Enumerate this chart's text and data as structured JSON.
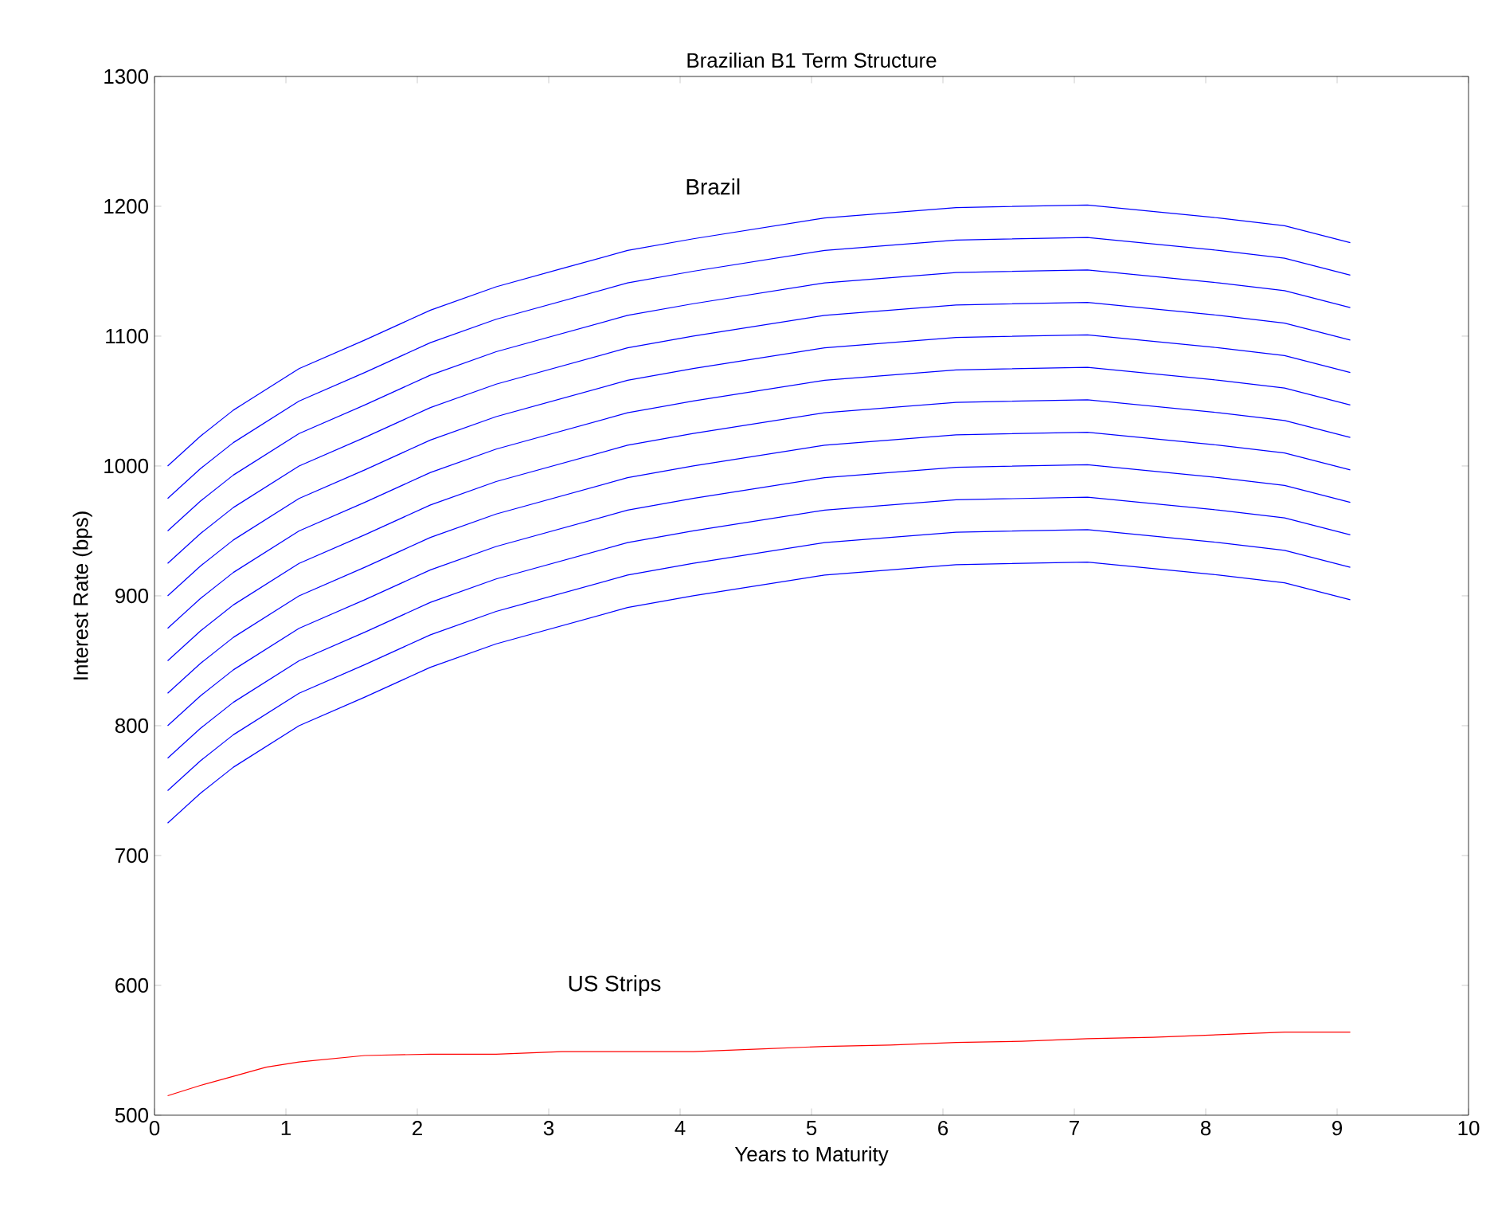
{
  "chart_data": {
    "type": "line",
    "title": "Brazilian B1 Term Structure",
    "xlabel": "Years to Maturity",
    "ylabel": "Interest Rate (bps)",
    "x": [
      0.1,
      0.35,
      0.6,
      1.1,
      1.6,
      2.1,
      2.6,
      3.1,
      3.6,
      4.1,
      5.1,
      6.1,
      7.1,
      8.1,
      8.6,
      9.1
    ],
    "series": [
      {
        "color": "#0000ff",
        "values": [
          725,
          748,
          768,
          800,
          822,
          845,
          863,
          877,
          891,
          900,
          916,
          924,
          926,
          916,
          910,
          897
        ]
      },
      {
        "color": "#0000ff",
        "values": [
          750,
          773,
          793,
          825,
          847,
          870,
          888,
          902,
          916,
          925,
          941,
          949,
          951,
          941,
          935,
          922
        ]
      },
      {
        "color": "#0000ff",
        "values": [
          775,
          798,
          818,
          850,
          872,
          895,
          913,
          927,
          941,
          950,
          966,
          974,
          976,
          966,
          960,
          947
        ]
      },
      {
        "color": "#0000ff",
        "values": [
          800,
          823,
          843,
          875,
          897,
          920,
          938,
          952,
          966,
          975,
          991,
          999,
          1001,
          991,
          985,
          972
        ]
      },
      {
        "color": "#0000ff",
        "values": [
          825,
          848,
          868,
          900,
          922,
          945,
          963,
          977,
          991,
          1000,
          1016,
          1024,
          1026,
          1016,
          1010,
          997
        ]
      },
      {
        "color": "#0000ff",
        "values": [
          850,
          873,
          893,
          925,
          947,
          970,
          988,
          1002,
          1016,
          1025,
          1041,
          1049,
          1051,
          1041,
          1035,
          1022
        ]
      },
      {
        "color": "#0000ff",
        "values": [
          875,
          898,
          918,
          950,
          972,
          995,
          1013,
          1027,
          1041,
          1050,
          1066,
          1074,
          1076,
          1066,
          1060,
          1047
        ]
      },
      {
        "color": "#0000ff",
        "values": [
          900,
          923,
          943,
          975,
          997,
          1020,
          1038,
          1052,
          1066,
          1075,
          1091,
          1099,
          1101,
          1091,
          1085,
          1072
        ]
      },
      {
        "color": "#0000ff",
        "values": [
          925,
          948,
          968,
          1000,
          1022,
          1045,
          1063,
          1077,
          1091,
          1100,
          1116,
          1124,
          1126,
          1116,
          1110,
          1097
        ]
      },
      {
        "color": "#0000ff",
        "values": [
          950,
          973,
          993,
          1025,
          1047,
          1070,
          1088,
          1102,
          1116,
          1125,
          1141,
          1149,
          1151,
          1141,
          1135,
          1122
        ]
      },
      {
        "color": "#0000ff",
        "values": [
          975,
          998,
          1018,
          1050,
          1072,
          1095,
          1113,
          1127,
          1141,
          1150,
          1166,
          1174,
          1176,
          1166,
          1160,
          1147
        ]
      },
      {
        "color": "#0000ff",
        "values": [
          1000,
          1023,
          1043,
          1075,
          1097,
          1120,
          1138,
          1152,
          1166,
          1175,
          1191,
          1199,
          1201,
          1191,
          1185,
          1172
        ]
      },
      {
        "color": "#ff0000",
        "x": [
          0.1,
          0.35,
          0.6,
          0.85,
          1.1,
          1.6,
          2.1,
          2.6,
          3.1,
          4.1,
          4.6,
          5.1,
          5.6,
          6.1,
          6.6,
          7.1,
          7.6,
          8.1,
          8.6,
          9.1
        ],
        "values": [
          515,
          523,
          530,
          537,
          541,
          546,
          547,
          547,
          549,
          549,
          551,
          553,
          554,
          556,
          557,
          559,
          560,
          562,
          564,
          564
        ]
      }
    ],
    "annotations": [
      "Brazil",
      "US Strips"
    ],
    "xlim": [
      0,
      10
    ],
    "xticks": [
      0,
      1,
      2,
      3,
      4,
      5,
      6,
      7,
      8,
      9,
      10
    ],
    "ylim": [
      500,
      1300
    ],
    "yticks": [
      500,
      600,
      700,
      800,
      900,
      1000,
      1100,
      1200,
      1300
    ],
    "grid": false,
    "marker": "none",
    "line_style": "solid"
  }
}
